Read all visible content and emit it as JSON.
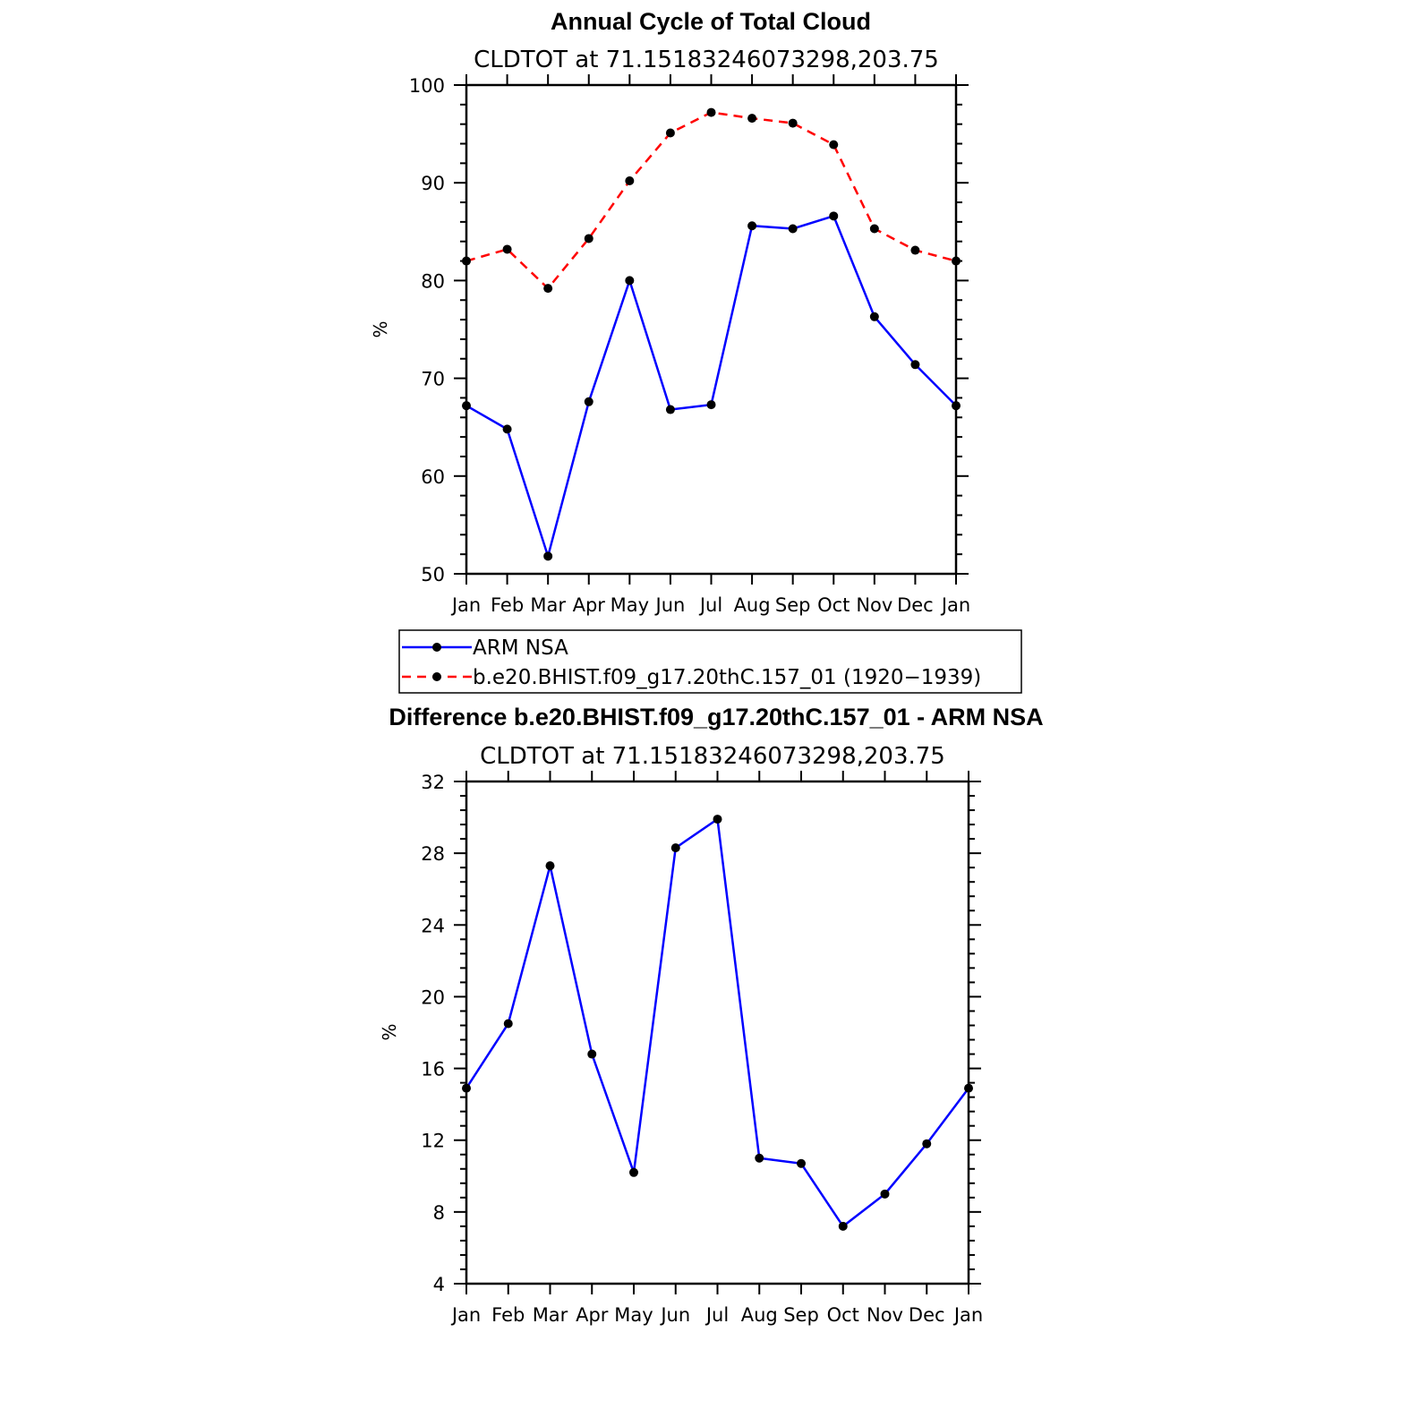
{
  "chart_data": [
    {
      "type": "line",
      "title": "Annual Cycle of Total Cloud",
      "subtitle": "CLDTOT at 71.15183246073298,203.75",
      "ylabel": "%",
      "ylim": [
        50,
        100
      ],
      "yticks": [
        "50",
        "60",
        "70",
        "80",
        "90",
        "100"
      ],
      "categories": [
        "Jan",
        "Feb",
        "Mar",
        "Apr",
        "May",
        "Jun",
        "Jul",
        "Aug",
        "Sep",
        "Oct",
        "Nov",
        "Dec",
        "Jan"
      ],
      "series": [
        {
          "name": "ARM NSA",
          "color": "#0000ff",
          "dashed": false,
          "values": [
            67.2,
            64.8,
            51.8,
            67.6,
            80.0,
            66.8,
            67.3,
            85.6,
            85.3,
            86.6,
            76.3,
            71.4,
            67.2
          ]
        },
        {
          "name": "b.e20.BHIST.f09_g17.20thC.157_01 (1920−1939)",
          "color": "#ff0000",
          "dashed": true,
          "values": [
            82.0,
            83.2,
            79.2,
            84.3,
            90.2,
            95.1,
            97.2,
            96.6,
            96.1,
            93.9,
            85.3,
            83.1,
            82.0
          ]
        }
      ]
    },
    {
      "type": "line",
      "title": "Difference b.e20.BHIST.f09_g17.20thC.157_01 - ARM NSA",
      "subtitle": "CLDTOT at 71.15183246073298,203.75",
      "ylabel": "%",
      "ylim": [
        4,
        32
      ],
      "yticks": [
        "4",
        "8",
        "12",
        "16",
        "20",
        "24",
        "28",
        "32"
      ],
      "categories": [
        "Jan",
        "Feb",
        "Mar",
        "Apr",
        "May",
        "Jun",
        "Jul",
        "Aug",
        "Sep",
        "Oct",
        "Nov",
        "Dec",
        "Jan"
      ],
      "series": [
        {
          "name": "Difference",
          "color": "#0000ff",
          "dashed": false,
          "values": [
            14.9,
            18.5,
            27.3,
            16.8,
            10.2,
            28.3,
            29.9,
            11.0,
            10.7,
            7.2,
            9.0,
            11.8,
            14.9
          ]
        }
      ]
    }
  ]
}
